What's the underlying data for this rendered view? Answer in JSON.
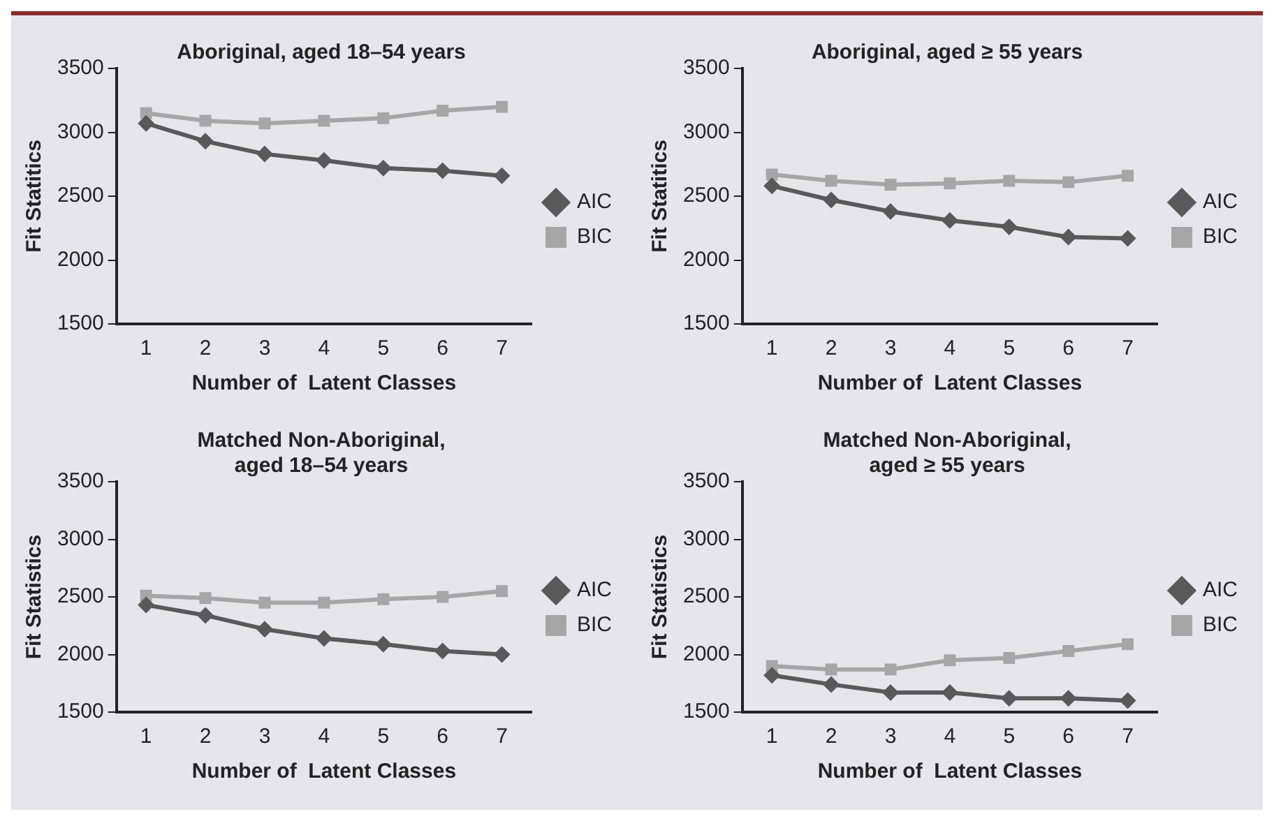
{
  "chart_data": [
    {
      "type": "line",
      "title": "Aboriginal, aged 18–54 years",
      "xlabel": "Number of  Latent Classes",
      "ylabel": "Fit Statitics",
      "categories": [
        "1",
        "2",
        "3",
        "4",
        "5",
        "6",
        "7"
      ],
      "ylim": [
        1500,
        3500
      ],
      "yticks": [
        1500,
        2000,
        2500,
        3000,
        3500
      ],
      "grid": false,
      "legend": "right",
      "series": [
        {
          "name": "AIC",
          "color": "#595959",
          "marker": "diamond",
          "values": [
            3070,
            2930,
            2830,
            2780,
            2720,
            2700,
            2660
          ]
        },
        {
          "name": "BIC",
          "color": "#a6a6a6",
          "marker": "square",
          "values": [
            3150,
            3090,
            3070,
            3090,
            3110,
            3170,
            3200
          ]
        }
      ]
    },
    {
      "type": "line",
      "title": "Aboriginal, aged ≥ 55 years",
      "xlabel": "Number of  Latent Classes",
      "ylabel": "Fit Statitics",
      "categories": [
        "1",
        "2",
        "3",
        "4",
        "5",
        "6",
        "7"
      ],
      "ylim": [
        1500,
        3500
      ],
      "yticks": [
        1500,
        2000,
        2500,
        3000,
        3500
      ],
      "grid": false,
      "legend": "right",
      "series": [
        {
          "name": "AIC",
          "color": "#595959",
          "marker": "diamond",
          "values": [
            2580,
            2470,
            2380,
            2310,
            2260,
            2180,
            2170
          ]
        },
        {
          "name": "BIC",
          "color": "#a6a6a6",
          "marker": "square",
          "values": [
            2670,
            2620,
            2590,
            2600,
            2620,
            2610,
            2660
          ]
        }
      ]
    },
    {
      "type": "line",
      "title": [
        "Matched Non-Aboriginal,",
        "aged 18–54 years"
      ],
      "xlabel": "Number of  Latent Classes",
      "ylabel": "Fit Statistics",
      "categories": [
        "1",
        "2",
        "3",
        "4",
        "5",
        "6",
        "7"
      ],
      "ylim": [
        1500,
        3500
      ],
      "yticks": [
        1500,
        2000,
        2500,
        3000,
        3500
      ],
      "grid": false,
      "legend": "right",
      "series": [
        {
          "name": "AIC",
          "color": "#595959",
          "marker": "diamond",
          "values": [
            2430,
            2340,
            2220,
            2140,
            2090,
            2030,
            2000
          ]
        },
        {
          "name": "BIC",
          "color": "#a6a6a6",
          "marker": "square",
          "values": [
            2510,
            2490,
            2450,
            2450,
            2480,
            2500,
            2550
          ]
        }
      ]
    },
    {
      "type": "line",
      "title": [
        "Matched Non-Aboriginal,",
        "aged ≥ 55 years"
      ],
      "xlabel": "Number of  Latent Classes",
      "ylabel": "Fit Statistics",
      "categories": [
        "1",
        "2",
        "3",
        "4",
        "5",
        "6",
        "7"
      ],
      "ylim": [
        1500,
        3500
      ],
      "yticks": [
        1500,
        2000,
        2500,
        3000,
        3500
      ],
      "grid": false,
      "legend": "right",
      "series": [
        {
          "name": "AIC",
          "color": "#595959",
          "marker": "diamond",
          "values": [
            1820,
            1740,
            1670,
            1670,
            1620,
            1620,
            1600
          ]
        },
        {
          "name": "BIC",
          "color": "#a6a6a6",
          "marker": "square",
          "values": [
            1900,
            1870,
            1870,
            1950,
            1970,
            2030,
            2090
          ]
        }
      ]
    }
  ]
}
